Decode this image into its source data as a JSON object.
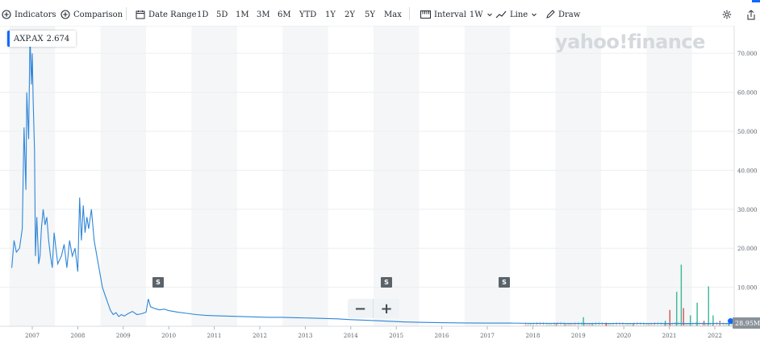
{
  "toolbar": {
    "indicators_label": "Indicators",
    "comparison_label": "Comparison",
    "date_range_label": "Date Range",
    "ranges": [
      "1D",
      "5D",
      "1M",
      "3M",
      "6M",
      "YTD",
      "1Y",
      "2Y",
      "5Y",
      "Max"
    ],
    "interval_label": "Interval",
    "interval_value": "1W",
    "line_label": "Line",
    "draw_label": "Draw"
  },
  "ticker": {
    "symbol": "AXP.AX",
    "price": "2.674"
  },
  "watermark": "yahoo!finance",
  "split_marker": "S",
  "volume_badge": "28.95M",
  "colors": {
    "line": "#2f86d8",
    "accent": "#0f69ff",
    "vol_up": "#3ab795",
    "vol_down": "#d5534a"
  },
  "chart_data": {
    "type": "line",
    "x_ticks": [
      "2007",
      "2008",
      "2009",
      "2010",
      "2011",
      "2012",
      "2013",
      "2014",
      "2015",
      "2016",
      "2017",
      "2018",
      "2019",
      "2020",
      "2021",
      "2022"
    ],
    "y_ticks": [
      "10.000",
      "20.000",
      "30.000",
      "40.000",
      "50.000",
      "60.000",
      "70.000"
    ],
    "ylim": [
      0,
      75
    ],
    "grid": true,
    "series": [
      {
        "x": [
          2006.55,
          2006.6,
          2006.65,
          2006.72,
          2006.78,
          2006.82,
          2006.86,
          2006.88,
          2006.92,
          2006.95,
          2006.98,
          2007.0,
          2007.02,
          2007.05,
          2007.07,
          2007.1,
          2007.12,
          2007.14,
          2007.17,
          2007.2,
          2007.24,
          2007.28,
          2007.32,
          2007.36,
          2007.4,
          2007.44,
          2007.48,
          2007.52,
          2007.56,
          2007.6,
          2007.64,
          2007.7,
          2007.76,
          2007.82,
          2007.88,
          2007.94,
          2008.0,
          2008.04,
          2008.08,
          2008.12,
          2008.16,
          2008.2,
          2008.24,
          2008.3,
          2008.36,
          2008.42,
          2008.48,
          2008.54,
          2008.6,
          2008.66,
          2008.72,
          2008.78,
          2008.84,
          2008.9,
          2008.96,
          2009.02,
          2009.1,
          2009.2,
          2009.3,
          2009.4,
          2009.5,
          2009.55,
          2009.6,
          2009.7,
          2009.8,
          2009.9,
          2010.0,
          2010.2,
          2010.4,
          2010.6,
          2010.8,
          2011.0,
          2011.3,
          2011.6,
          2011.9,
          2012.2,
          2012.5,
          2012.8,
          2013.1,
          2013.4,
          2013.7,
          2014.0,
          2014.4,
          2014.8,
          2015.2,
          2015.6,
          2016.0,
          2016.5,
          2017.0,
          2017.5,
          2018.0,
          2018.5,
          2019.0,
          2019.5,
          2020.0,
          2020.5,
          2021.0,
          2021.5,
          2022.0,
          2022.4
        ],
        "y": [
          15,
          22,
          19,
          20,
          25,
          51,
          35,
          60,
          48,
          75,
          62,
          70,
          58,
          45,
          18,
          28,
          22,
          16,
          18,
          25,
          30,
          26,
          28,
          22,
          18,
          15,
          24,
          20,
          16,
          17,
          18,
          21,
          15,
          22,
          18,
          20,
          14,
          33,
          22,
          31,
          24,
          28,
          25,
          30,
          22,
          18,
          14,
          10,
          8,
          6,
          4,
          3,
          3.5,
          2.5,
          3,
          2.6,
          3.2,
          3.8,
          3.0,
          3.2,
          3.6,
          7.0,
          5.0,
          4.5,
          4.2,
          4.4,
          4.0,
          3.6,
          3.3,
          3.0,
          2.8,
          2.7,
          2.6,
          2.5,
          2.4,
          2.3,
          2.3,
          2.2,
          2.1,
          2.0,
          1.9,
          1.7,
          1.5,
          1.3,
          1.1,
          1.0,
          0.9,
          0.85,
          0.8,
          0.8,
          0.75,
          0.75,
          0.7,
          0.7,
          0.7,
          0.7,
          0.7,
          0.7,
          0.7,
          0.7
        ]
      }
    ],
    "volume": {
      "x": [
        2018.5,
        2018.7,
        2019.1,
        2019.3,
        2019.6,
        2020.2,
        2020.9,
        2021.0,
        2021.15,
        2021.25,
        2021.3,
        2021.45,
        2021.6,
        2021.75,
        2021.85,
        2021.95,
        2022.1,
        2022.3
      ],
      "values": [
        0.6,
        0.5,
        2.5,
        0.8,
        1.0,
        0.7,
        1.5,
        4.5,
        9.5,
        17,
        5,
        3,
        6.5,
        1.5,
        11,
        3,
        1.5,
        1.0
      ]
    }
  }
}
